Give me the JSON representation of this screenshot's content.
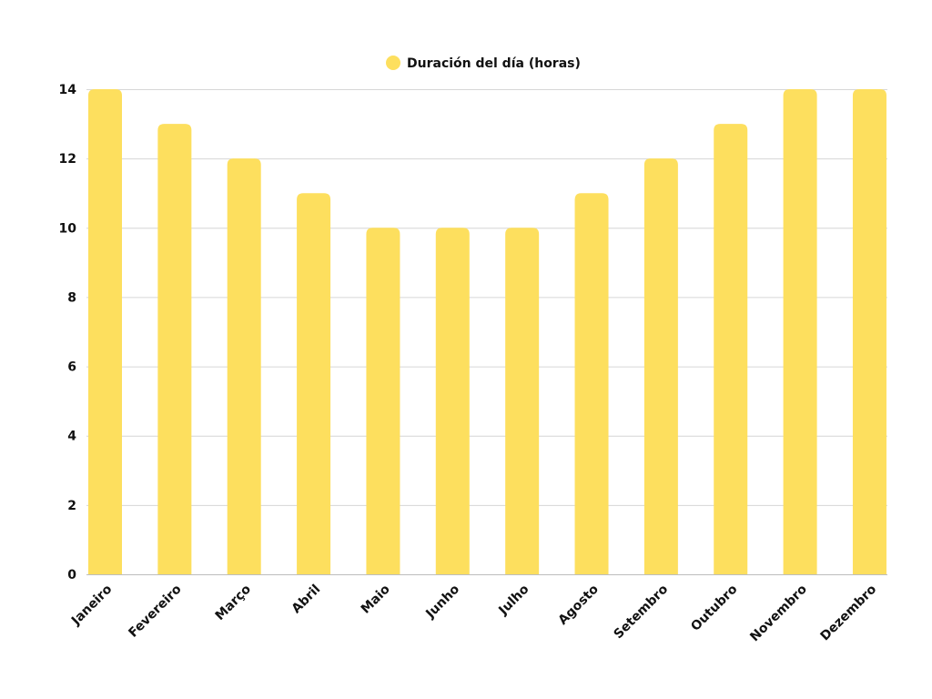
{
  "chart_data": {
    "type": "bar",
    "title": "",
    "xlabel": "",
    "ylabel": "",
    "categories": [
      "Janeiro",
      "Fevereiro",
      "Março",
      "Abril",
      "Maio",
      "Junho",
      "Julho",
      "Agosto",
      "Setembro",
      "Outubro",
      "Novembro",
      "Dezembro"
    ],
    "series": [
      {
        "name": "Duración del día (horas)",
        "values": [
          14,
          13,
          12,
          11,
          10,
          10,
          10,
          11,
          12,
          13,
          14,
          14
        ],
        "color": "#FDDF5E"
      }
    ],
    "ylim": [
      0,
      14
    ],
    "yticks": [
      "0",
      "2",
      "4",
      "6",
      "8",
      "10",
      "12",
      "14"
    ],
    "grid": true,
    "legend_position": "top-center"
  }
}
